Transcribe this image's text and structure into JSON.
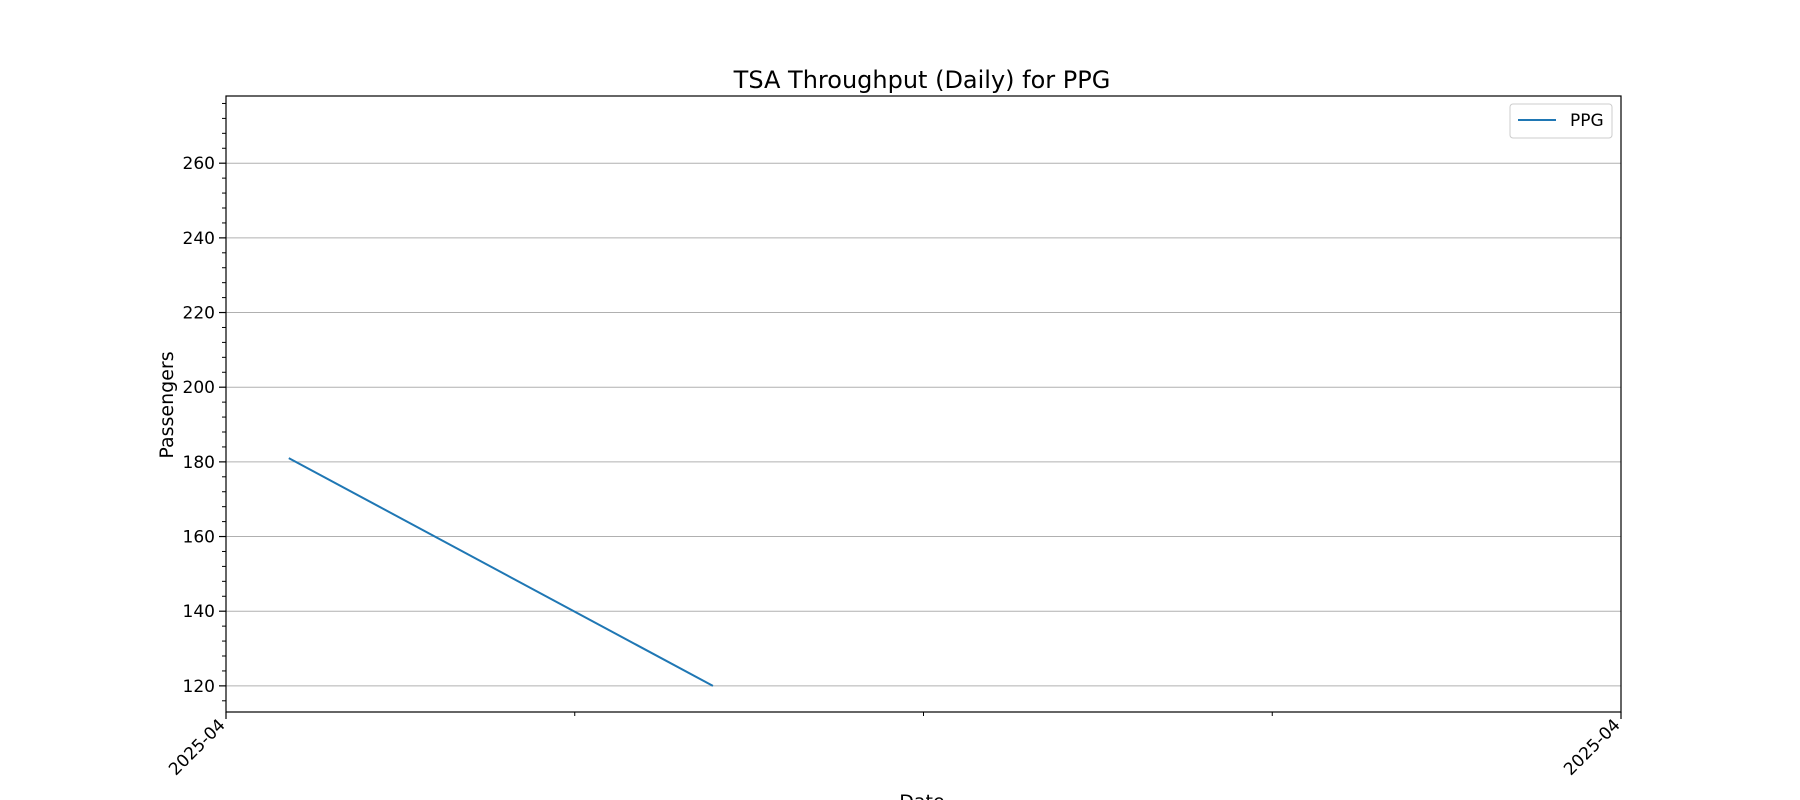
{
  "chart_data": {
    "type": "line",
    "title": "TSA Throughput (Daily) for PPG",
    "xlabel": "Date",
    "ylabel": "Passengers",
    "x_tick_labels": [
      "2025-04",
      "2025-04"
    ],
    "y_ticks": [
      120,
      140,
      160,
      180,
      200,
      220,
      240,
      260
    ],
    "ylim": [
      113,
      278
    ],
    "grid": "horizontal",
    "legend_position": "top-right",
    "series": [
      {
        "name": "PPG",
        "color": "#1f77b4",
        "x_fraction": [
          0.045,
          0.349
        ],
        "values": [
          181,
          120
        ]
      }
    ]
  }
}
